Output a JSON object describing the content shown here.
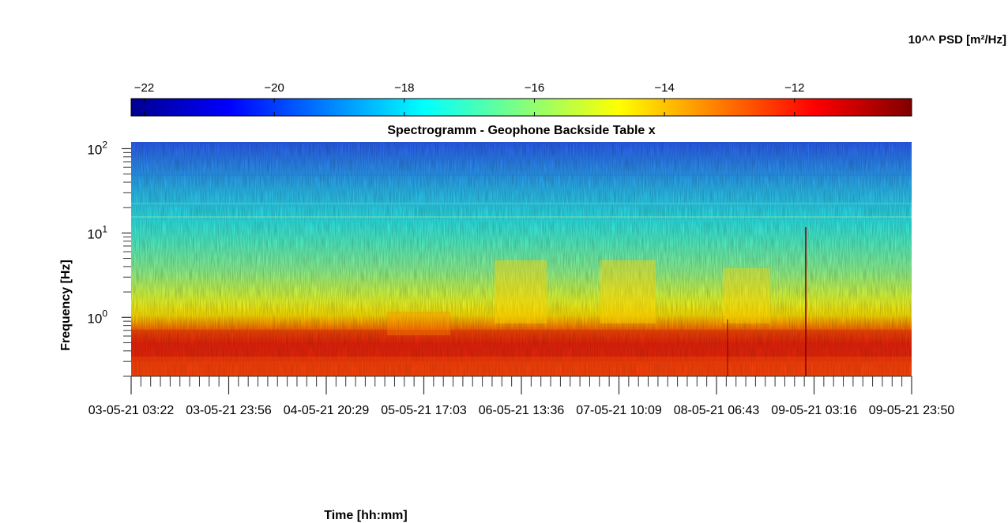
{
  "figure": {
    "colorbar_label": "10^^ PSD [m²/Hz]"
  },
  "chart_data": {
    "type": "heatmap",
    "title": "Spectrogramm - Geophone Backside Table x",
    "xlabel": "Time [hh:mm]",
    "ylabel": "Frequency [Hz]",
    "y_scale": "log",
    "ylim": [
      0.2,
      120
    ],
    "y_ticks": [
      {
        "mantissa": "10",
        "exp": "0",
        "value": 1
      },
      {
        "mantissa": "10",
        "exp": "1",
        "value": 10
      },
      {
        "mantissa": "10",
        "exp": "2",
        "value": 100
      }
    ],
    "x_tick_labels": [
      "03-05-21  03:22",
      "03-05-21  23:56",
      "04-05-21  20:29",
      "05-05-21  17:03",
      "06-05-21  13:36",
      "07-05-21  10:09",
      "08-05-21  06:43",
      "09-05-21  03:16",
      "09-05-21  23:50"
    ],
    "colorbar": {
      "colormap": "jet",
      "range": [
        -22.2,
        -10.2
      ],
      "ticks": [
        -22,
        -20,
        -18,
        -16,
        -14,
        -12
      ],
      "placement": "top"
    },
    "z_levels_by_frequency": [
      {
        "hz": 0.2,
        "z": -11.8
      },
      {
        "hz": 0.4,
        "z": -11.8
      },
      {
        "hz": 0.8,
        "z": -13.5
      },
      {
        "hz": 1.2,
        "z": -14.8
      },
      {
        "hz": 3,
        "z": -16.0
      },
      {
        "hz": 10,
        "z": -16.6
      },
      {
        "hz": 30,
        "z": -17.5
      },
      {
        "hz": 100,
        "z": -20.2
      }
    ],
    "grid": false
  }
}
